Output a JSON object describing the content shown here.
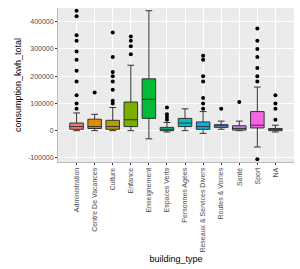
{
  "chart_data": {
    "type": "box",
    "x_label": "building_type",
    "y_label": "consumption_kwh_total",
    "categories": [
      "Administration",
      "Centre De Vacances",
      "Culture",
      "Enfance",
      "Enseignement",
      "Espaces Verts",
      "Personnes Agées",
      "Reseaux & Services Divers",
      "Routes & Voiries",
      "Santé",
      "Sport",
      "NA"
    ],
    "colors": [
      "#F8766D",
      "#DE8C00",
      "#B79F00",
      "#7CAE00",
      "#00BA38",
      "#00C08B",
      "#00BFC4",
      "#00B4F0",
      "#619CFF",
      "#C77CFF",
      "#F564E3",
      "#FF64B0"
    ],
    "q1": [
      5000,
      8000,
      5000,
      15000,
      45000,
      0,
      15000,
      5000,
      12000,
      2000,
      10000,
      0
    ],
    "median": [
      15000,
      15000,
      15000,
      40000,
      115000,
      5000,
      28000,
      15000,
      18000,
      8000,
      20000,
      3000
    ],
    "q3": [
      28000,
      42000,
      38000,
      105000,
      190000,
      12000,
      45000,
      32000,
      22000,
      18000,
      70000,
      8000
    ],
    "lower": [
      0,
      0,
      0,
      0,
      -30000,
      -5000,
      0,
      -10000,
      5000,
      0,
      -60000,
      -5000
    ],
    "upper": [
      65000,
      60000,
      85000,
      240000,
      440000,
      30000,
      80000,
      70000,
      35000,
      35000,
      160000,
      20000
    ],
    "outliers": [
      [
        80000,
        100000,
        130000,
        180000,
        220000,
        260000,
        290000,
        330000,
        350000,
        420000,
        440000
      ],
      [
        140000
      ],
      [
        100000,
        110000,
        150000,
        180000,
        200000,
        215000,
        270000,
        360000
      ],
      [
        280000,
        310000,
        330000,
        345000
      ],
      [],
      [
        40000,
        50000,
        60000,
        85000
      ],
      [],
      [
        80000,
        100000,
        120000,
        180000,
        200000,
        260000,
        275000
      ],
      [
        80000
      ],
      [
        105000
      ],
      [
        -105000,
        180000,
        200000,
        230000,
        270000,
        300000,
        330000,
        375000
      ],
      [
        40000,
        80000,
        100000,
        130000
      ]
    ],
    "ylim": [
      -115000,
      450000
    ],
    "yticks": [
      -100000,
      0,
      100000,
      200000,
      300000,
      400000
    ],
    "grid": true
  }
}
